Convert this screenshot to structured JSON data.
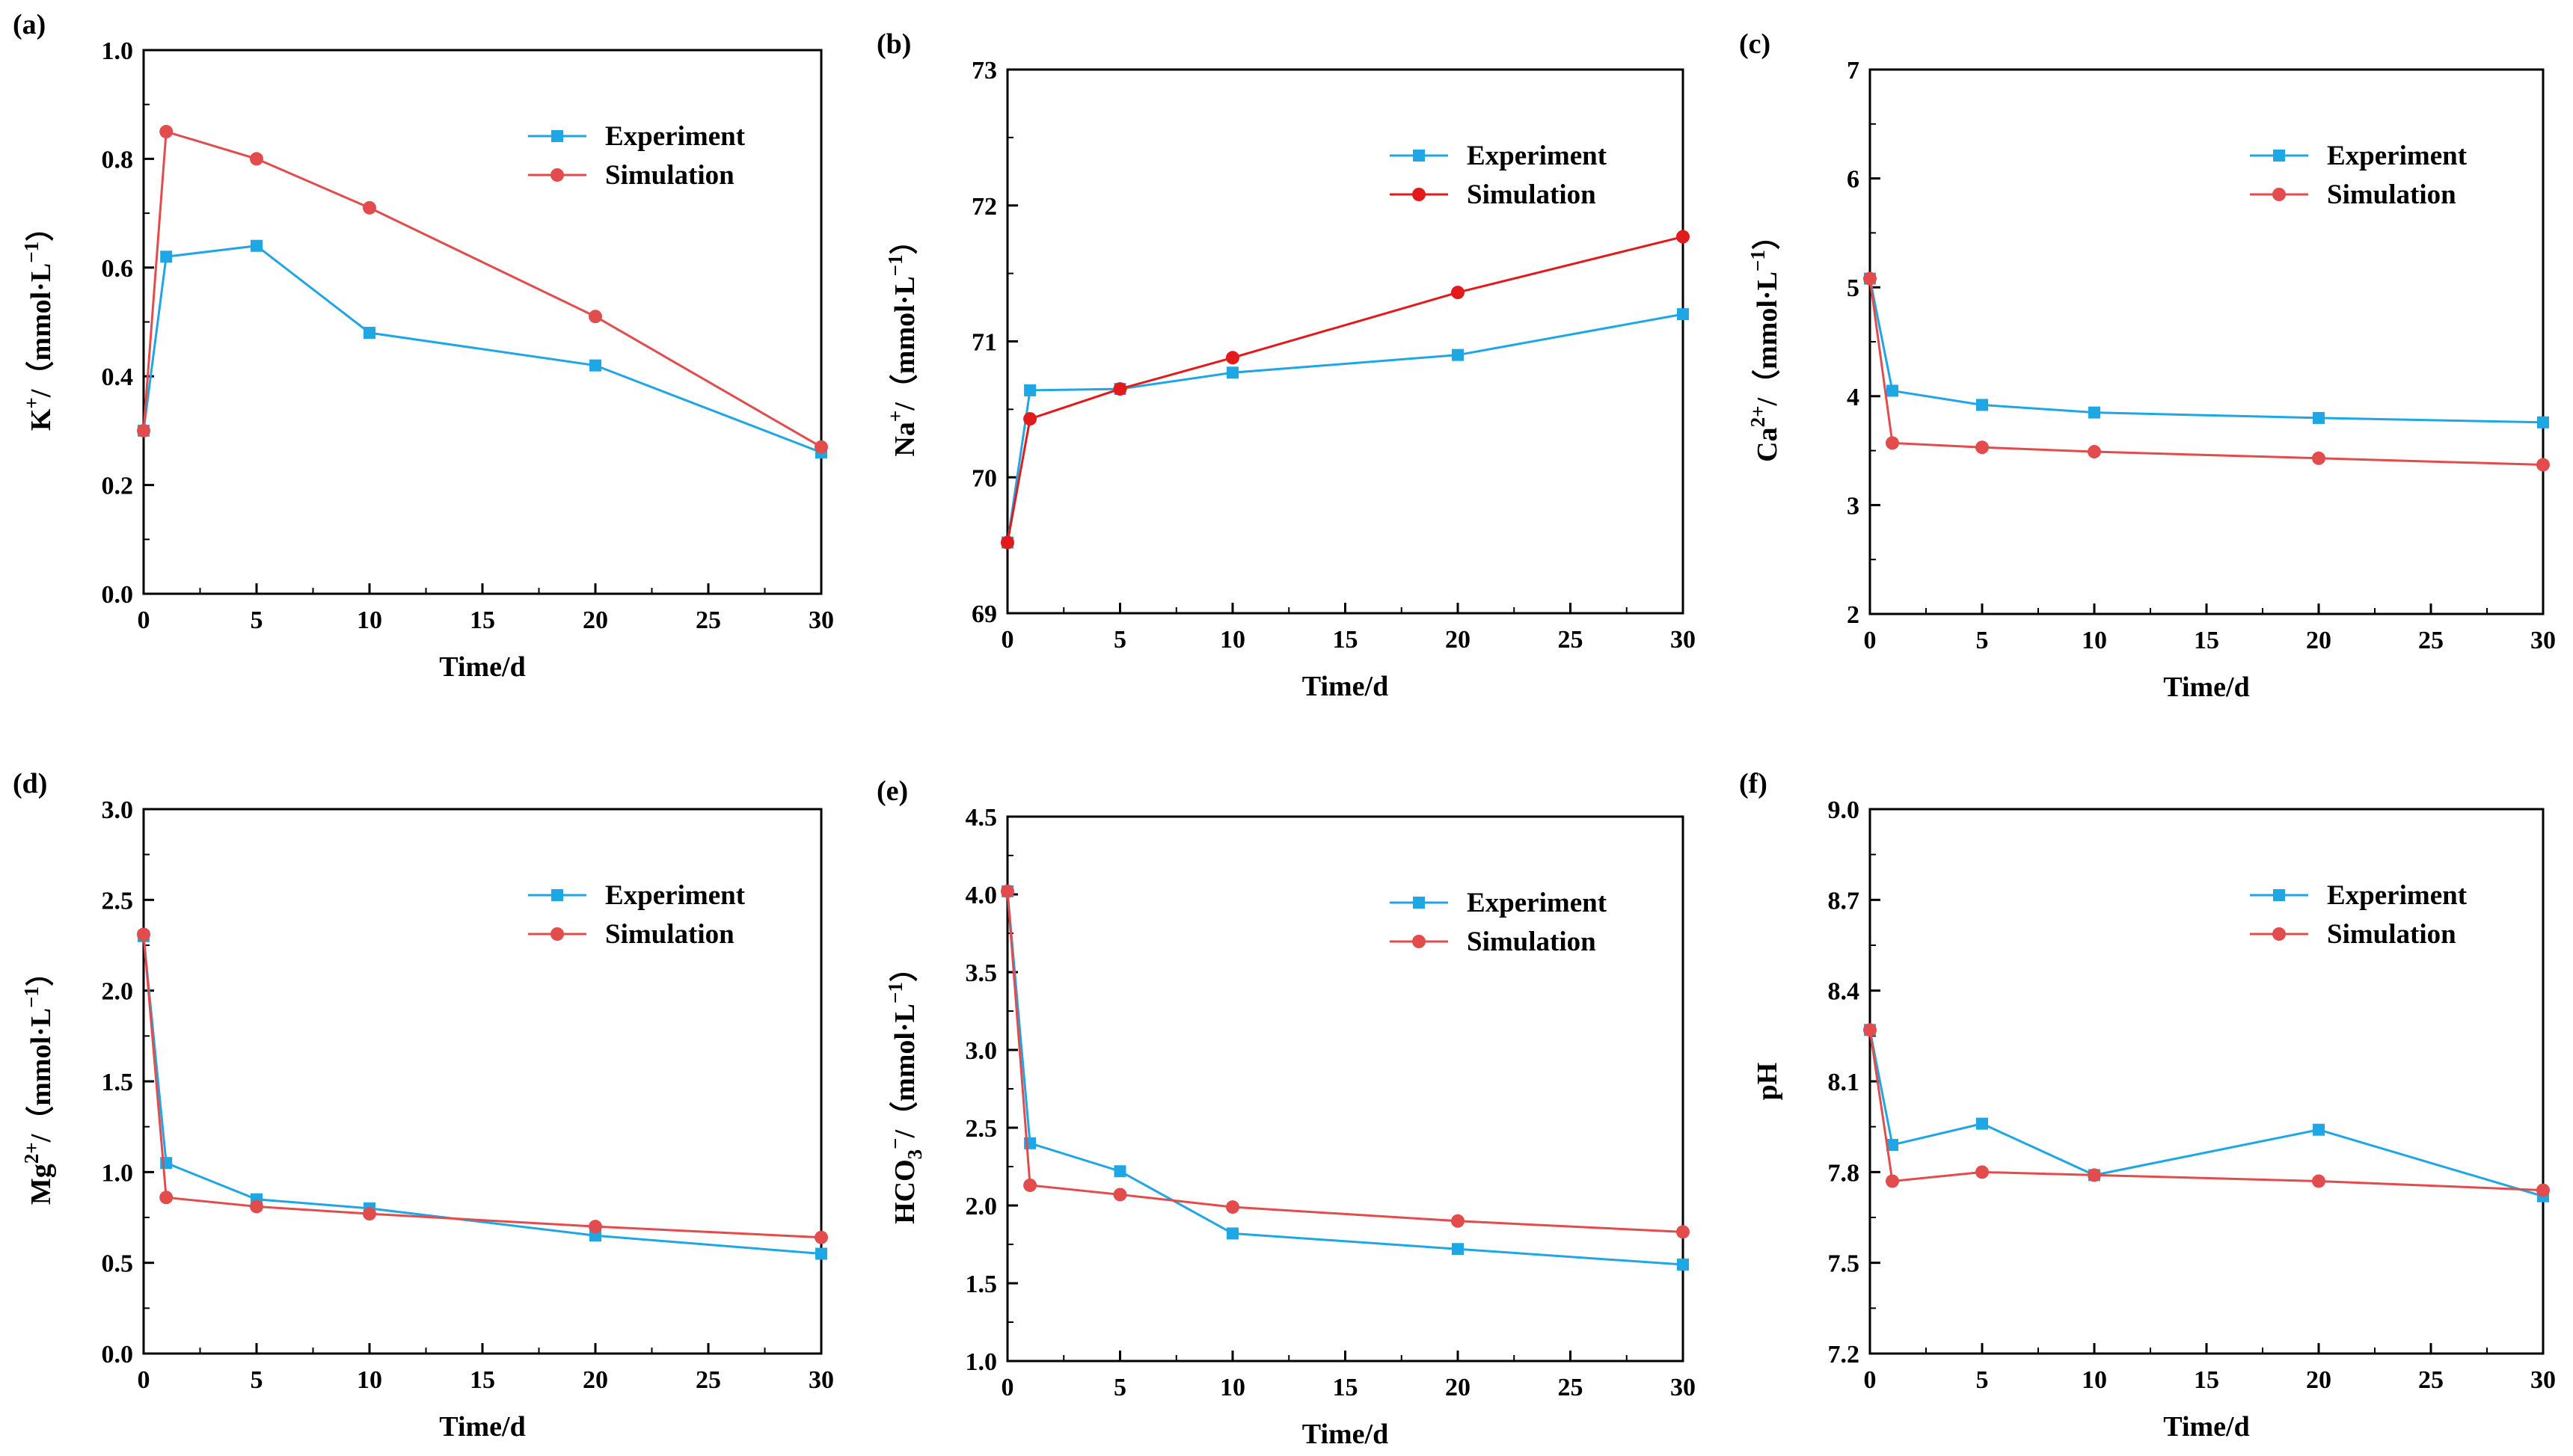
{
  "colors": {
    "experiment": "#1fa6e4",
    "simulation": "#e24c4c",
    "simulation_b": "#e31a1c",
    "axis": "#000000"
  },
  "chart_data": [
    {
      "id": "a",
      "panel_label": "(a)",
      "type": "line",
      "ylabel": {
        "base": "K",
        "sup": "+",
        "sub": "",
        "unit": "/（mmol·L",
        "unit_sup": "−1",
        "close": "）"
      },
      "xlabel": "Time/d",
      "xlim": [
        0,
        30
      ],
      "ylim": [
        0.0,
        1.0
      ],
      "xticks": [
        0,
        5,
        10,
        15,
        20,
        25,
        30
      ],
      "xtick_labels": [
        "0",
        "5",
        "10",
        "15",
        "20",
        "25",
        "30"
      ],
      "yticks": [
        0.0,
        0.2,
        0.4,
        0.6,
        0.8,
        1.0
      ],
      "ytick_labels": [
        "0.0",
        "0.2",
        "0.4",
        "0.6",
        "0.8",
        "1.0"
      ],
      "legend": [
        "Experiment",
        "Simulation"
      ],
      "legend_position": "top-right",
      "series": [
        {
          "name": "Experiment",
          "marker": "square",
          "color_key": "experiment",
          "x": [
            0,
            1,
            5,
            10,
            20,
            30
          ],
          "y": [
            0.3,
            0.62,
            0.64,
            0.48,
            0.42,
            0.26
          ]
        },
        {
          "name": "Simulation",
          "marker": "circle",
          "color_key": "simulation",
          "x": [
            0,
            1,
            5,
            10,
            20,
            30
          ],
          "y": [
            0.3,
            0.85,
            0.8,
            0.71,
            0.51,
            0.27
          ]
        }
      ]
    },
    {
      "id": "b",
      "panel_label": "(b)",
      "type": "line",
      "ylabel": {
        "base": "Na",
        "sup": "+",
        "sub": "",
        "unit": "/（mmol·L",
        "unit_sup": "−1",
        "close": "）"
      },
      "xlabel": "Time/d",
      "xlim": [
        0,
        30
      ],
      "ylim": [
        69,
        73
      ],
      "xticks": [
        0,
        5,
        10,
        15,
        20,
        25,
        30
      ],
      "xtick_labels": [
        "0",
        "5",
        "10",
        "15",
        "20",
        "25",
        "30"
      ],
      "yticks": [
        69,
        70,
        71,
        72,
        73
      ],
      "ytick_labels": [
        "69",
        "70",
        "71",
        "72",
        "73"
      ],
      "legend": [
        "Experiment",
        "Simulation"
      ],
      "legend_position": "top-right",
      "series": [
        {
          "name": "Experiment",
          "marker": "square",
          "color_key": "experiment",
          "x": [
            0,
            1,
            5,
            10,
            20,
            30
          ],
          "y": [
            69.52,
            70.64,
            70.65,
            70.77,
            70.9,
            71.2
          ]
        },
        {
          "name": "Simulation",
          "marker": "circle",
          "color_key": "simulation_b",
          "x": [
            0,
            1,
            5,
            10,
            20,
            30
          ],
          "y": [
            69.52,
            70.43,
            70.65,
            70.88,
            71.36,
            71.77
          ]
        }
      ]
    },
    {
      "id": "c",
      "panel_label": "(c)",
      "type": "line",
      "ylabel": {
        "base": "Ca",
        "sup": "2+",
        "sub": "",
        "unit": "/（mmol·L",
        "unit_sup": "−1",
        "close": "）"
      },
      "xlabel": "Time/d",
      "xlim": [
        0,
        30
      ],
      "ylim": [
        2,
        7
      ],
      "xticks": [
        0,
        5,
        10,
        15,
        20,
        25,
        30
      ],
      "xtick_labels": [
        "0",
        "5",
        "10",
        "15",
        "20",
        "25",
        "30"
      ],
      "yticks": [
        2,
        3,
        4,
        5,
        6,
        7
      ],
      "ytick_labels": [
        "2",
        "3",
        "4",
        "5",
        "6",
        "7"
      ],
      "legend": [
        "Experiment",
        "Simulation"
      ],
      "legend_position": "top-right",
      "series": [
        {
          "name": "Experiment",
          "marker": "square",
          "color_key": "experiment",
          "x": [
            0,
            1,
            5,
            10,
            20,
            30
          ],
          "y": [
            5.08,
            4.05,
            3.92,
            3.85,
            3.8,
            3.76
          ]
        },
        {
          "name": "Simulation",
          "marker": "circle",
          "color_key": "simulation",
          "x": [
            0,
            1,
            5,
            10,
            20,
            30
          ],
          "y": [
            5.08,
            3.57,
            3.53,
            3.49,
            3.43,
            3.37
          ]
        }
      ]
    },
    {
      "id": "d",
      "panel_label": "(d)",
      "type": "line",
      "ylabel": {
        "base": "Mg",
        "sup": "2+",
        "sub": "",
        "unit": "/（mmol·L",
        "unit_sup": "−1",
        "close": "）"
      },
      "xlabel": "Time/d",
      "xlim": [
        0,
        30
      ],
      "ylim": [
        0.0,
        3.0
      ],
      "xticks": [
        0,
        5,
        10,
        15,
        20,
        25,
        30
      ],
      "xtick_labels": [
        "0",
        "5",
        "10",
        "15",
        "20",
        "25",
        "30"
      ],
      "yticks": [
        0.0,
        0.5,
        1.0,
        1.5,
        2.0,
        2.5,
        3.0
      ],
      "ytick_labels": [
        "0.0",
        "0.5",
        "1.0",
        "1.5",
        "2.0",
        "2.5",
        "3.0"
      ],
      "legend": [
        "Experiment",
        "Simulation"
      ],
      "legend_position": "top-right",
      "series": [
        {
          "name": "Experiment",
          "marker": "square",
          "color_key": "experiment",
          "x": [
            0,
            1,
            5,
            10,
            20,
            30
          ],
          "y": [
            2.3,
            1.05,
            0.85,
            0.8,
            0.65,
            0.55
          ]
        },
        {
          "name": "Simulation",
          "marker": "circle",
          "color_key": "simulation",
          "x": [
            0,
            1,
            5,
            10,
            20,
            30
          ],
          "y": [
            2.31,
            0.86,
            0.81,
            0.77,
            0.7,
            0.64
          ]
        }
      ]
    },
    {
      "id": "e",
      "panel_label": "(e)",
      "type": "line",
      "ylabel": {
        "base": "HCO",
        "sup": "−",
        "sub": "3",
        "unit": "/（mmol·L",
        "unit_sup": "−1",
        "close": "）"
      },
      "xlabel": "Time/d",
      "xlim": [
        0,
        30
      ],
      "ylim": [
        1.0,
        4.5
      ],
      "xticks": [
        0,
        5,
        10,
        15,
        20,
        25,
        30
      ],
      "xtick_labels": [
        "0",
        "5",
        "10",
        "15",
        "20",
        "25",
        "30"
      ],
      "yticks": [
        1.0,
        1.5,
        2.0,
        2.5,
        3.0,
        3.5,
        4.0,
        4.5
      ],
      "ytick_labels": [
        "1.0",
        "1.5",
        "2.0",
        "2.5",
        "3.0",
        "3.5",
        "4.0",
        "4.5"
      ],
      "legend": [
        "Experiment",
        "Simulation"
      ],
      "legend_position": "top-right",
      "series": [
        {
          "name": "Experiment",
          "marker": "square",
          "color_key": "experiment",
          "x": [
            0,
            1,
            5,
            10,
            20,
            30
          ],
          "y": [
            4.02,
            2.4,
            2.22,
            1.82,
            1.72,
            1.62
          ]
        },
        {
          "name": "Simulation",
          "marker": "circle",
          "color_key": "simulation",
          "x": [
            0,
            1,
            5,
            10,
            20,
            30
          ],
          "y": [
            4.02,
            2.13,
            2.07,
            1.99,
            1.9,
            1.83
          ]
        }
      ]
    },
    {
      "id": "f",
      "panel_label": "(f)",
      "type": "line",
      "ylabel": {
        "base": "pH",
        "sup": "",
        "sub": "",
        "unit": "",
        "unit_sup": "",
        "close": ""
      },
      "xlabel": "Time/d",
      "xlim": [
        0,
        30
      ],
      "ylim": [
        7.2,
        9.0
      ],
      "xticks": [
        0,
        5,
        10,
        15,
        20,
        25,
        30
      ],
      "xtick_labels": [
        "0",
        "5",
        "10",
        "15",
        "20",
        "25",
        "30"
      ],
      "yticks": [
        7.2,
        7.5,
        7.8,
        8.1,
        8.4,
        8.7,
        9.0
      ],
      "ytick_labels": [
        "7.2",
        "7.5",
        "7.8",
        "8.1",
        "8.4",
        "8.7",
        "9.0"
      ],
      "legend": [
        "Experiment",
        "Simulation"
      ],
      "legend_position": "top-right",
      "series": [
        {
          "name": "Experiment",
          "marker": "square",
          "color_key": "experiment",
          "x": [
            0,
            1,
            5,
            10,
            20,
            30
          ],
          "y": [
            8.27,
            7.89,
            7.96,
            7.79,
            7.94,
            7.72
          ]
        },
        {
          "name": "Simulation",
          "marker": "circle",
          "color_key": "simulation",
          "x": [
            0,
            1,
            5,
            10,
            20,
            30
          ],
          "y": [
            8.27,
            7.77,
            7.8,
            7.79,
            7.77,
            7.74
          ]
        }
      ]
    }
  ]
}
